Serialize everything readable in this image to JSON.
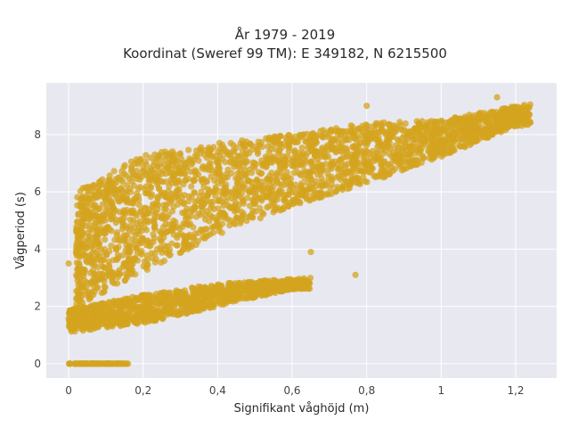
{
  "chart_data": {
    "type": "scatter",
    "title_lines": [
      "År 1979 - 2019",
      "Koordinat (Sweref 99 TM): E 349182, N 6215500"
    ],
    "xlabel": "Signifikant våghöjd (m)",
    "ylabel": "Vågperiod (s)",
    "xlim": [
      -0.06,
      1.31
    ],
    "ylim": [
      -0.5,
      9.8
    ],
    "x_ticks": [
      0,
      0.2,
      0.4,
      0.6,
      0.8,
      1.0,
      1.2
    ],
    "x_tick_labels": [
      "0",
      "0,2",
      "0,4",
      "0,6",
      "0,8",
      "1",
      "1,2"
    ],
    "y_ticks": [
      0,
      2,
      4,
      6,
      8
    ],
    "y_tick_labels": [
      "0",
      "2",
      "4",
      "6",
      "8"
    ],
    "grid": true,
    "marker_color": "#D4A41F",
    "plot_background": "#E8E8F0",
    "clusters": [
      {
        "id": "zero_period_band",
        "x_range": [
          0.0,
          0.16
        ],
        "y_value": 0.0
      },
      {
        "id": "main_upper_band",
        "x_range": [
          0.02,
          1.24
        ],
        "lower_edge": [
          [
            0.02,
            2.0
          ],
          [
            0.2,
            3.2
          ],
          [
            0.4,
            4.5
          ],
          [
            0.6,
            5.5
          ],
          [
            0.8,
            6.3
          ],
          [
            1.0,
            7.2
          ],
          [
            1.2,
            8.3
          ]
        ],
        "upper_edge": [
          [
            0.02,
            6.0
          ],
          [
            0.2,
            7.3
          ],
          [
            0.4,
            7.7
          ],
          [
            0.6,
            8.0
          ],
          [
            0.8,
            8.4
          ],
          [
            1.0,
            8.5
          ],
          [
            1.24,
            9.1
          ]
        ]
      },
      {
        "id": "low_period_branch",
        "x_range": [
          0.0,
          0.65
        ],
        "lower_edge": [
          [
            0.0,
            1.1
          ],
          [
            0.2,
            1.4
          ],
          [
            0.4,
            2.0
          ],
          [
            0.6,
            2.6
          ]
        ],
        "upper_edge": [
          [
            0.0,
            1.9
          ],
          [
            0.2,
            2.4
          ],
          [
            0.4,
            2.8
          ],
          [
            0.65,
            3.0
          ]
        ]
      }
    ],
    "outliers": [
      [
        0.65,
        3.9
      ],
      [
        0.77,
        3.1
      ],
      [
        0.39,
        5.4
      ],
      [
        1.15,
        9.3
      ],
      [
        0.8,
        9.0
      ],
      [
        0.0,
        3.5
      ]
    ]
  }
}
